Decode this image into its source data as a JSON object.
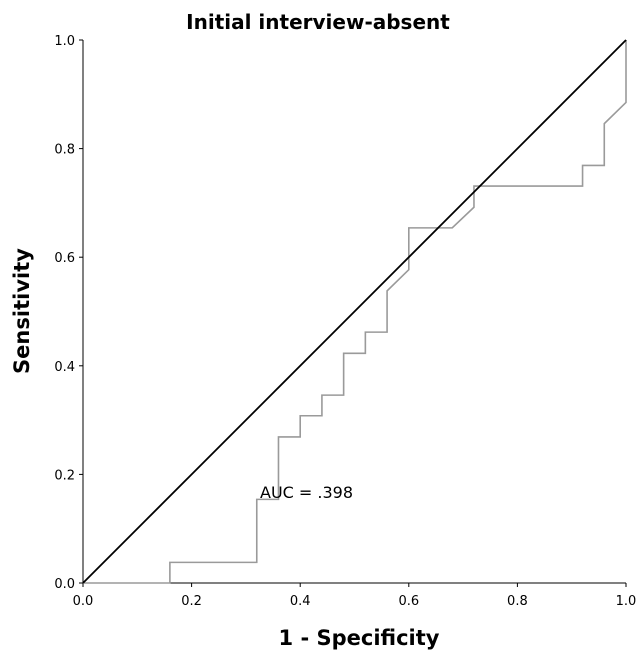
{
  "chart_data": {
    "type": "line",
    "title": "Initial interview-absent",
    "xlabel": "1 - Specificity",
    "ylabel": "Sensitivity",
    "xlim": [
      0.0,
      1.0
    ],
    "ylim": [
      0.0,
      1.0
    ],
    "x_ticks": [
      "0.0",
      "0.2",
      "0.4",
      "0.6",
      "0.8",
      "1.0"
    ],
    "y_ticks": [
      "0.0",
      "0.2",
      "0.4",
      "0.6",
      "0.8",
      "1.0"
    ],
    "grid": false,
    "legend": "none",
    "annotation": "AUC = .398",
    "series": [
      {
        "color": "#9a9a9a",
        "x": [
          0.0,
          0.16,
          0.16,
          0.32,
          0.32,
          0.36,
          0.36,
          0.4,
          0.4,
          0.44,
          0.44,
          0.48,
          0.48,
          0.52,
          0.52,
          0.56,
          0.56,
          0.6,
          0.6,
          0.68,
          0.72,
          0.72,
          0.92,
          0.92,
          0.96,
          0.96,
          1.0,
          1.0
        ],
        "y": [
          0.0,
          0.0,
          0.038,
          0.038,
          0.154,
          0.154,
          0.269,
          0.269,
          0.308,
          0.308,
          0.346,
          0.346,
          0.423,
          0.423,
          0.462,
          0.462,
          0.538,
          0.577,
          0.654,
          0.654,
          0.692,
          0.731,
          0.731,
          0.769,
          0.769,
          0.846,
          0.885,
          1.0
        ]
      },
      {
        "color": "#000000",
        "x": [
          0.0,
          1.0
        ],
        "y": [
          0.0,
          1.0
        ]
      }
    ]
  }
}
